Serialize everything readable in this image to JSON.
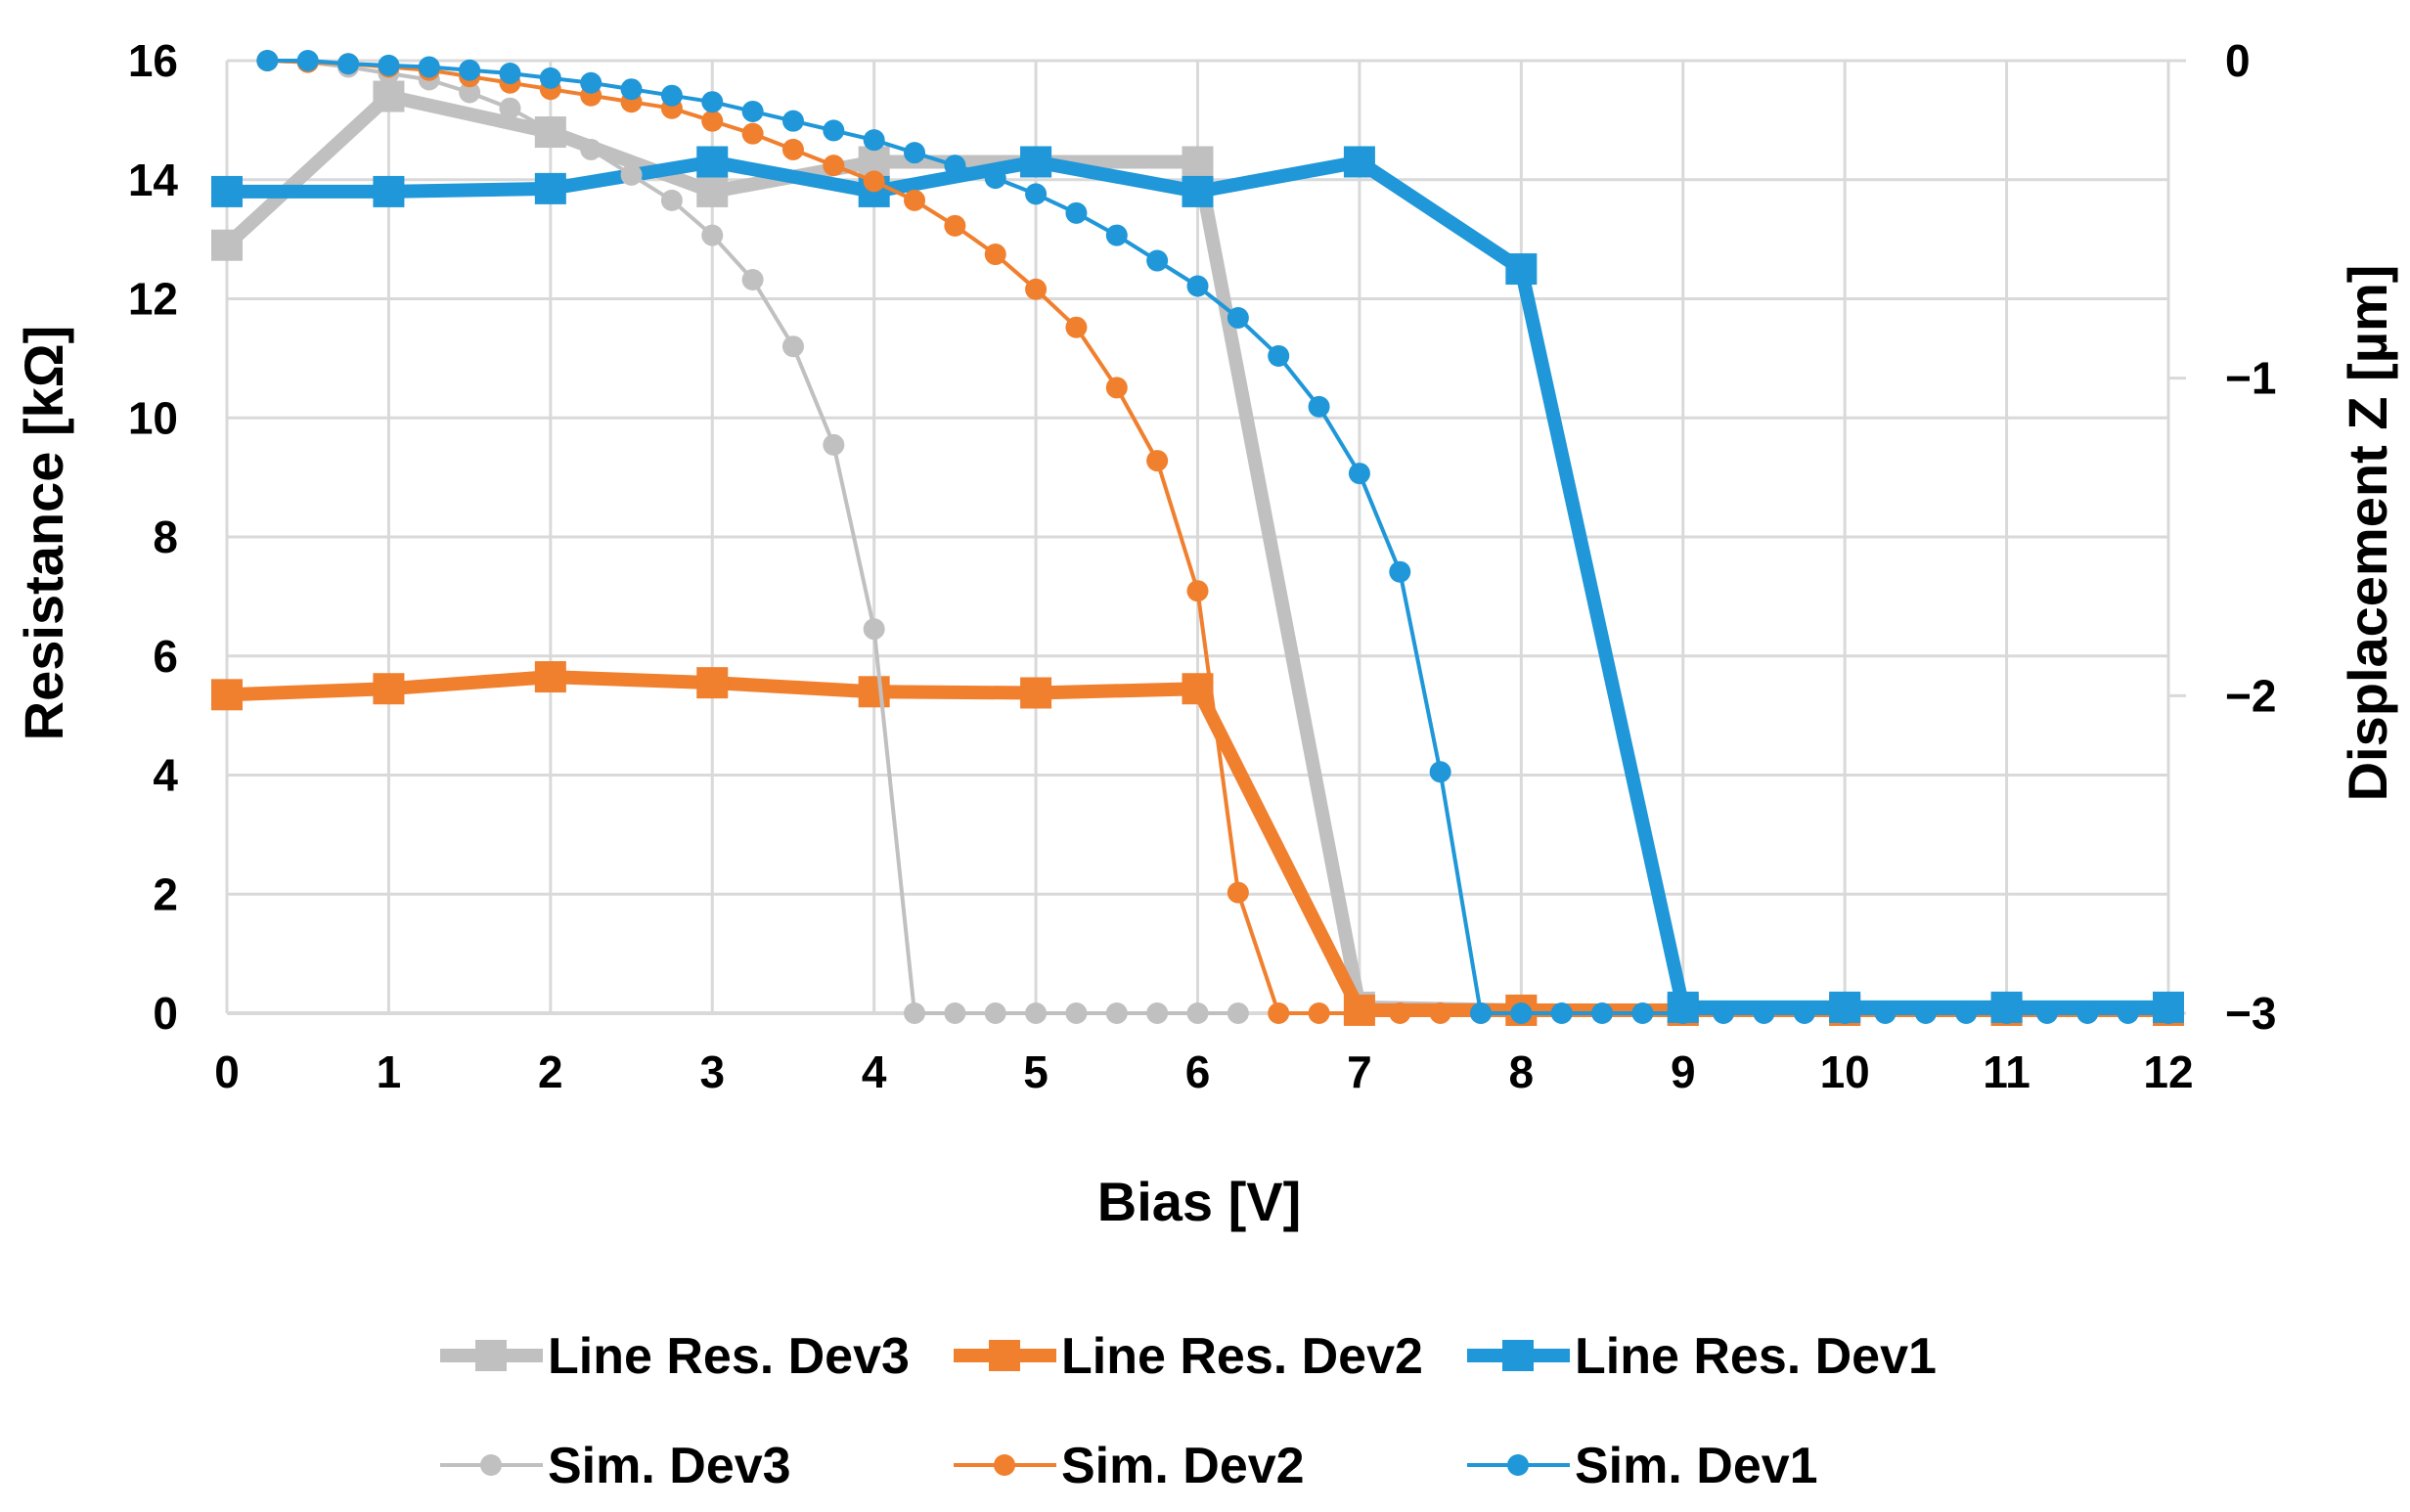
{
  "chart_data": {
    "type": "line",
    "xlabel": "Bias [V]",
    "ylabel": "Resistance [kΩ]",
    "y2label": "Displacement Z [µm]",
    "xlim": [
      0,
      12
    ],
    "ylim": [
      0,
      16
    ],
    "y2lim": [
      -3,
      0
    ],
    "x_ticks": [
      "0",
      "1",
      "2",
      "3",
      "4",
      "5",
      "6",
      "7",
      "8",
      "9",
      "10",
      "11",
      "12"
    ],
    "y_ticks": [
      "0",
      "2",
      "4",
      "6",
      "8",
      "10",
      "12",
      "14",
      "16"
    ],
    "y2_ticks": [
      "0",
      "−1",
      "−2",
      "−3"
    ],
    "grid": true,
    "legend_position": "bottom",
    "colors": {
      "dev3": "#c0c0c0",
      "dev2": "#f07f2e",
      "dev1": "#1f97d8",
      "grid": "#d9d9d9"
    },
    "series": [
      {
        "name": "Line Res. Dev3",
        "axis": "left",
        "style": "thick",
        "color": "#c0c0c0",
        "x": [
          0,
          1,
          2,
          3,
          4,
          5,
          6,
          7,
          8,
          9,
          10,
          11,
          12
        ],
        "values": [
          12.9,
          15.4,
          14.8,
          13.8,
          14.3,
          14.3,
          14.3,
          0.1,
          0.05,
          0.05,
          0.05,
          0.05,
          0.05
        ]
      },
      {
        "name": "Line Res. Dev2",
        "axis": "left",
        "style": "thick",
        "color": "#f07f2e",
        "x": [
          0,
          1,
          2,
          3,
          4,
          5,
          6,
          7,
          8,
          9,
          10,
          11,
          12
        ],
        "values": [
          5.35,
          5.45,
          5.65,
          5.55,
          5.4,
          5.38,
          5.45,
          0.05,
          0.05,
          0.05,
          0.05,
          0.05,
          0.05
        ]
      },
      {
        "name": "Line Res. Dev1",
        "axis": "left",
        "style": "thick",
        "color": "#1f97d8",
        "x": [
          0,
          1,
          2,
          3,
          4,
          5,
          6,
          7,
          8,
          9,
          10,
          11,
          12
        ],
        "values": [
          13.8,
          13.8,
          13.85,
          14.3,
          13.8,
          14.3,
          13.8,
          14.3,
          12.5,
          0.1,
          0.1,
          0.1,
          0.1
        ]
      },
      {
        "name": "Sim. Dev3",
        "axis": "right",
        "style": "thin",
        "color": "#c0c0c0",
        "x": [
          0.25,
          0.5,
          0.75,
          1,
          1.25,
          1.5,
          1.75,
          2,
          2.25,
          2.5,
          2.75,
          3,
          3.25,
          3.5,
          3.75,
          4,
          4.25,
          4.5,
          4.75,
          5,
          5.25,
          5.5,
          5.75,
          6,
          6.25
        ],
        "values": [
          0,
          -0.005,
          -0.02,
          -0.04,
          -0.06,
          -0.1,
          -0.15,
          -0.22,
          -0.28,
          -0.36,
          -0.44,
          -0.55,
          -0.69,
          -0.9,
          -1.21,
          -1.79,
          -3,
          -3,
          -3,
          -3,
          -3,
          -3,
          -3,
          -3,
          -3
        ]
      },
      {
        "name": "Sim. Dev2",
        "axis": "right",
        "style": "thin",
        "color": "#f07f2e",
        "x": [
          0.25,
          0.5,
          0.75,
          1,
          1.25,
          1.5,
          1.75,
          2,
          2.25,
          2.5,
          2.75,
          3,
          3.25,
          3.5,
          3.75,
          4,
          4.25,
          4.5,
          4.75,
          5,
          5.25,
          5.5,
          5.75,
          6,
          6.25,
          6.5,
          6.75,
          7,
          7.25,
          7.5,
          7.75
        ],
        "values": [
          0,
          -0.005,
          -0.01,
          -0.02,
          -0.03,
          -0.05,
          -0.07,
          -0.09,
          -0.11,
          -0.13,
          -0.15,
          -0.19,
          -0.23,
          -0.28,
          -0.33,
          -0.38,
          -0.44,
          -0.52,
          -0.61,
          -0.72,
          -0.84,
          -1.03,
          -1.26,
          -1.67,
          -2.62,
          -3,
          -3,
          -3,
          -3,
          -3,
          -3
        ]
      },
      {
        "name": "Sim. Dev1",
        "axis": "right",
        "style": "thin",
        "color": "#1f97d8",
        "x": [
          0.25,
          0.5,
          0.75,
          1,
          1.25,
          1.5,
          1.75,
          2,
          2.25,
          2.5,
          2.75,
          3,
          3.25,
          3.5,
          3.75,
          4,
          4.25,
          4.5,
          4.75,
          5,
          5.25,
          5.5,
          5.75,
          6,
          6.25,
          6.5,
          6.75,
          7,
          7.25,
          7.5,
          7.75,
          8,
          8.25,
          8.5,
          8.75,
          9,
          9.25,
          9.5,
          9.75,
          10,
          10.25,
          10.5,
          10.75,
          11,
          11.25,
          11.5,
          11.75,
          12
        ],
        "values": [
          0,
          0,
          -0.01,
          -0.015,
          -0.02,
          -0.03,
          -0.04,
          -0.055,
          -0.07,
          -0.09,
          -0.11,
          -0.13,
          -0.16,
          -0.19,
          -0.22,
          -0.25,
          -0.29,
          -0.33,
          -0.37,
          -0.42,
          -0.48,
          -0.55,
          -0.63,
          -0.71,
          -0.81,
          -0.93,
          -1.09,
          -1.3,
          -1.61,
          -2.24,
          -3,
          -3,
          -3,
          -3,
          -3,
          -3,
          -3,
          -3,
          -3,
          -3,
          -3,
          -3,
          -3,
          -3,
          -3,
          -3,
          -3,
          -3
        ]
      }
    ]
  }
}
